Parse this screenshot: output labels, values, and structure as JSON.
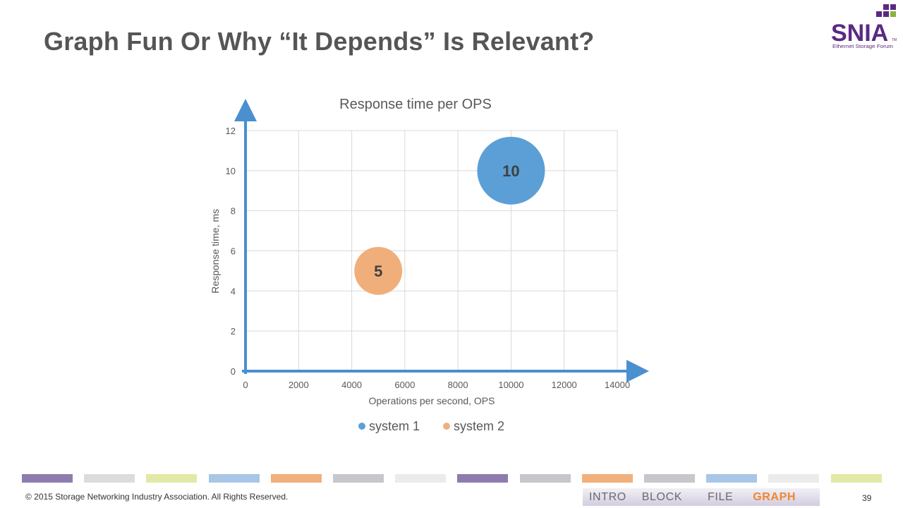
{
  "slide": {
    "title": "Graph Fun Or Why “It Depends” Is Relevant?",
    "footer_text": "© 2015 Storage Networking Industry Association. All Rights Reserved.",
    "page_number": "39"
  },
  "logo": {
    "wordmark": "SNIA",
    "trademark": "TM",
    "subtitle": "Ethernet Storage Forum",
    "colors": {
      "wordmark": "#5a2a82",
      "squares": "#5a2a82",
      "green_accent": "#8ab33f",
      "subtitle": "#5a2a82"
    }
  },
  "nav": {
    "tabs": [
      {
        "label": "INTRO",
        "active": false
      },
      {
        "label": "BLOCK",
        "active": false
      },
      {
        "label": "FILE",
        "active": false
      },
      {
        "label": "GRAPH",
        "active": true
      }
    ]
  },
  "color_strip": [
    "#8e7cae",
    "#dcdcdc",
    "#e2e9a6",
    "#a8c6e6",
    "#f2b07c",
    "#c6c6cc",
    "#ebebeb",
    "#8e7cae",
    "#c6c6cc",
    "#f2b07c",
    "#c6c6cc",
    "#a8c6e6",
    "#ebebeb",
    "#e2e9a6"
  ],
  "chart_data": {
    "type": "bubble",
    "title": "Response time per OPS",
    "xlabel": "Operations per second, OPS",
    "ylabel": "Response time, ms",
    "xlim": [
      0,
      14000
    ],
    "ylim": [
      0,
      12
    ],
    "x_ticks": [
      0,
      2000,
      4000,
      6000,
      8000,
      10000,
      12000,
      14000
    ],
    "y_ticks": [
      0,
      2,
      4,
      6,
      8,
      10,
      12
    ],
    "grid": true,
    "legend_position": "bottom",
    "series": [
      {
        "name": "system 1",
        "color": "#5b9fd6",
        "points": [
          {
            "x": 10000,
            "y": 10,
            "size": 10,
            "label": "10"
          }
        ]
      },
      {
        "name": "system 2",
        "color": "#f0af7a",
        "points": [
          {
            "x": 5000,
            "y": 5,
            "size": 5,
            "label": "5"
          }
        ]
      }
    ],
    "axis_arrow_color": "#4a8fd0"
  }
}
